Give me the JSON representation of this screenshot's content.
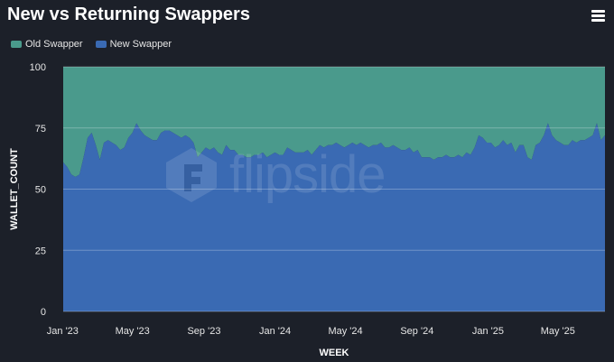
{
  "header": {
    "title": "New vs Returning Swappers"
  },
  "icons": {
    "menu": "hamburger-menu-icon"
  },
  "watermark": {
    "text": "flipside"
  },
  "legend": [
    {
      "label": "Old Swapper",
      "color": "#4a9a8c"
    },
    {
      "label": "New Swapper",
      "color": "#3a6ab3"
    }
  ],
  "chart_data": {
    "type": "area",
    "stacked": true,
    "xlabel": "WEEK",
    "ylabel": "WALLET_COUNT",
    "ylim": [
      0,
      100
    ],
    "yticks": [
      0,
      25,
      50,
      75,
      100
    ],
    "xticks": [
      "Jan '23",
      "May '23",
      "Sep '23",
      "Jan '24",
      "May '24",
      "Sep '24",
      "Jan '25",
      "May '25"
    ],
    "grid": true,
    "legend_position": "top-left",
    "x_start": "2023-01-02",
    "x_interval": "weekly",
    "series": [
      {
        "name": "New Swapper",
        "color": "#3a6ab3",
        "values": [
          61,
          59,
          56,
          55,
          56,
          63,
          71,
          73,
          68,
          62,
          69,
          70,
          69,
          68,
          66,
          67,
          71,
          73,
          77,
          74,
          72,
          71,
          70,
          70,
          73,
          74,
          74,
          73,
          72,
          71,
          72,
          71,
          69,
          63,
          65,
          67,
          66,
          67,
          65,
          64,
          68,
          66,
          66,
          64,
          64,
          63,
          63,
          64,
          64,
          65,
          63,
          64,
          65,
          64,
          64,
          67,
          66,
          65,
          65,
          65,
          66,
          64,
          66,
          68,
          67,
          68,
          68,
          69,
          68,
          67,
          68,
          69,
          68,
          69,
          68,
          67,
          68,
          68,
          69,
          67,
          67,
          68,
          67,
          66,
          66,
          67,
          65,
          66,
          63,
          63,
          63,
          62,
          63,
          63,
          64,
          63,
          63,
          64,
          63,
          65,
          64,
          67,
          72,
          71,
          69,
          69,
          67,
          68,
          70,
          68,
          69,
          65,
          68,
          68,
          63,
          62,
          68,
          69,
          72,
          77,
          72,
          70,
          69,
          68,
          68,
          70,
          69,
          70,
          70,
          71,
          72,
          77,
          70,
          72
        ]
      },
      {
        "name": "Old Swapper",
        "color": "#4a9a8c",
        "values": [
          39,
          41,
          44,
          45,
          44,
          37,
          29,
          27,
          32,
          38,
          31,
          30,
          31,
          32,
          34,
          33,
          29,
          27,
          23,
          26,
          28,
          29,
          30,
          30,
          27,
          26,
          26,
          27,
          28,
          29,
          28,
          29,
          31,
          37,
          35,
          33,
          34,
          33,
          35,
          36,
          32,
          34,
          34,
          36,
          36,
          37,
          37,
          36,
          36,
          35,
          37,
          36,
          35,
          36,
          36,
          33,
          34,
          35,
          35,
          35,
          34,
          36,
          34,
          32,
          33,
          32,
          32,
          31,
          32,
          33,
          32,
          31,
          32,
          31,
          32,
          33,
          32,
          32,
          31,
          33,
          33,
          32,
          33,
          34,
          34,
          33,
          35,
          34,
          37,
          37,
          37,
          38,
          37,
          37,
          36,
          37,
          37,
          36,
          37,
          35,
          36,
          33,
          28,
          29,
          31,
          31,
          33,
          32,
          30,
          32,
          31,
          35,
          32,
          32,
          37,
          38,
          32,
          31,
          28,
          23,
          28,
          30,
          31,
          32,
          32,
          30,
          31,
          30,
          30,
          29,
          28,
          23,
          30,
          28
        ]
      }
    ]
  }
}
